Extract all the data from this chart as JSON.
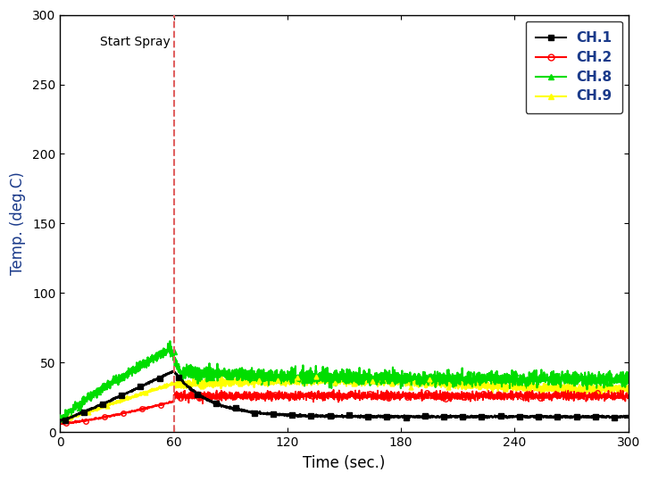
{
  "xlabel": "Time (sec.)",
  "ylabel": "Temp. (deg.C)",
  "xlim": [
    0,
    300
  ],
  "ylim": [
    0,
    300
  ],
  "xticks": [
    0,
    60,
    120,
    180,
    240,
    300
  ],
  "yticks": [
    0,
    50,
    100,
    150,
    200,
    250,
    300
  ],
  "spray_x": 60,
  "spray_label": "Start Spray",
  "vline_color": "#e06060",
  "black_vline_color": "#000000",
  "channels": [
    "CH.1",
    "CH.2",
    "CH.8",
    "CH.9"
  ],
  "colors": [
    "#000000",
    "#ff0000",
    "#00dd00",
    "#ffff00"
  ],
  "legend_text_color": "#1a3a8a",
  "background_color": "#ffffff",
  "ch1_peak": 44,
  "ch1_start": 8,
  "ch1_end": 11,
  "ch2_peak": 22,
  "ch2_start": 6,
  "ch2_end": 26,
  "ch8_peak": 60,
  "ch8_start": 8,
  "ch8_end": 38,
  "ch9_peak": 35,
  "ch9_start": 8,
  "ch9_end": 34
}
